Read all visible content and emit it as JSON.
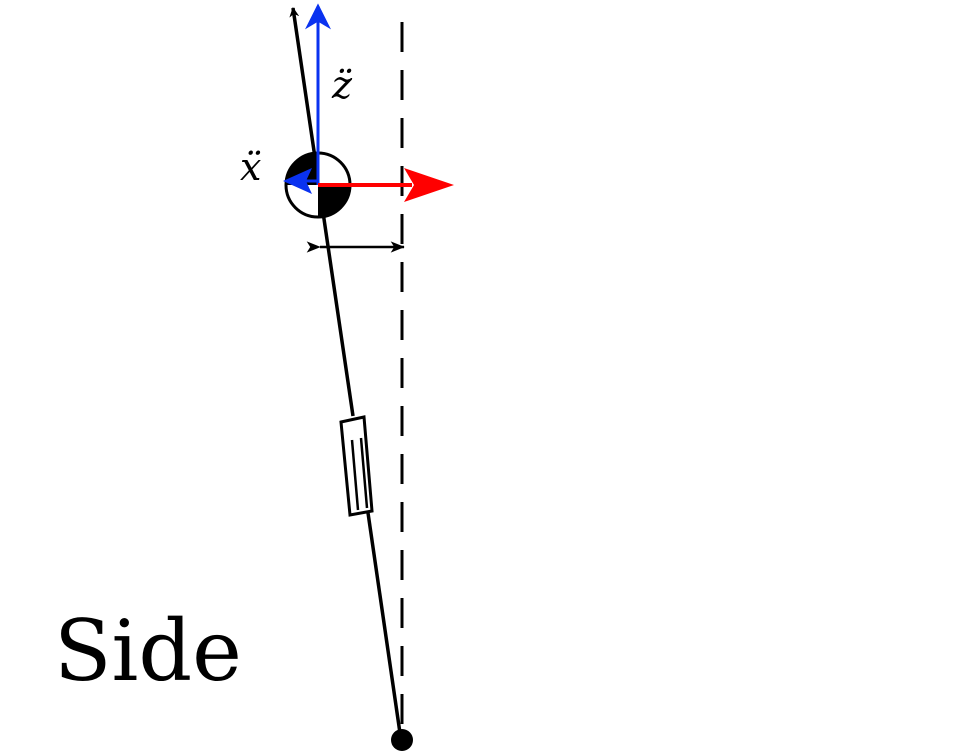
{
  "diagram": {
    "view_label": "Side",
    "labels": {
      "x_accel": "ẍ",
      "z_accel": "z̈"
    },
    "colors": {
      "body_line": "#000000",
      "z_accel_arrow": "#0a32f0",
      "x_accel_arrow": "#0a32f0",
      "force_arrow": "#ff0000",
      "reference_line": "#000000",
      "com_marker_fill": "#000000",
      "background": "#ffffff"
    },
    "icons": {
      "center_of_mass": "center-of-mass-marker",
      "pivot": "pivot-dot",
      "actuator": "prismatic-actuator"
    }
  }
}
